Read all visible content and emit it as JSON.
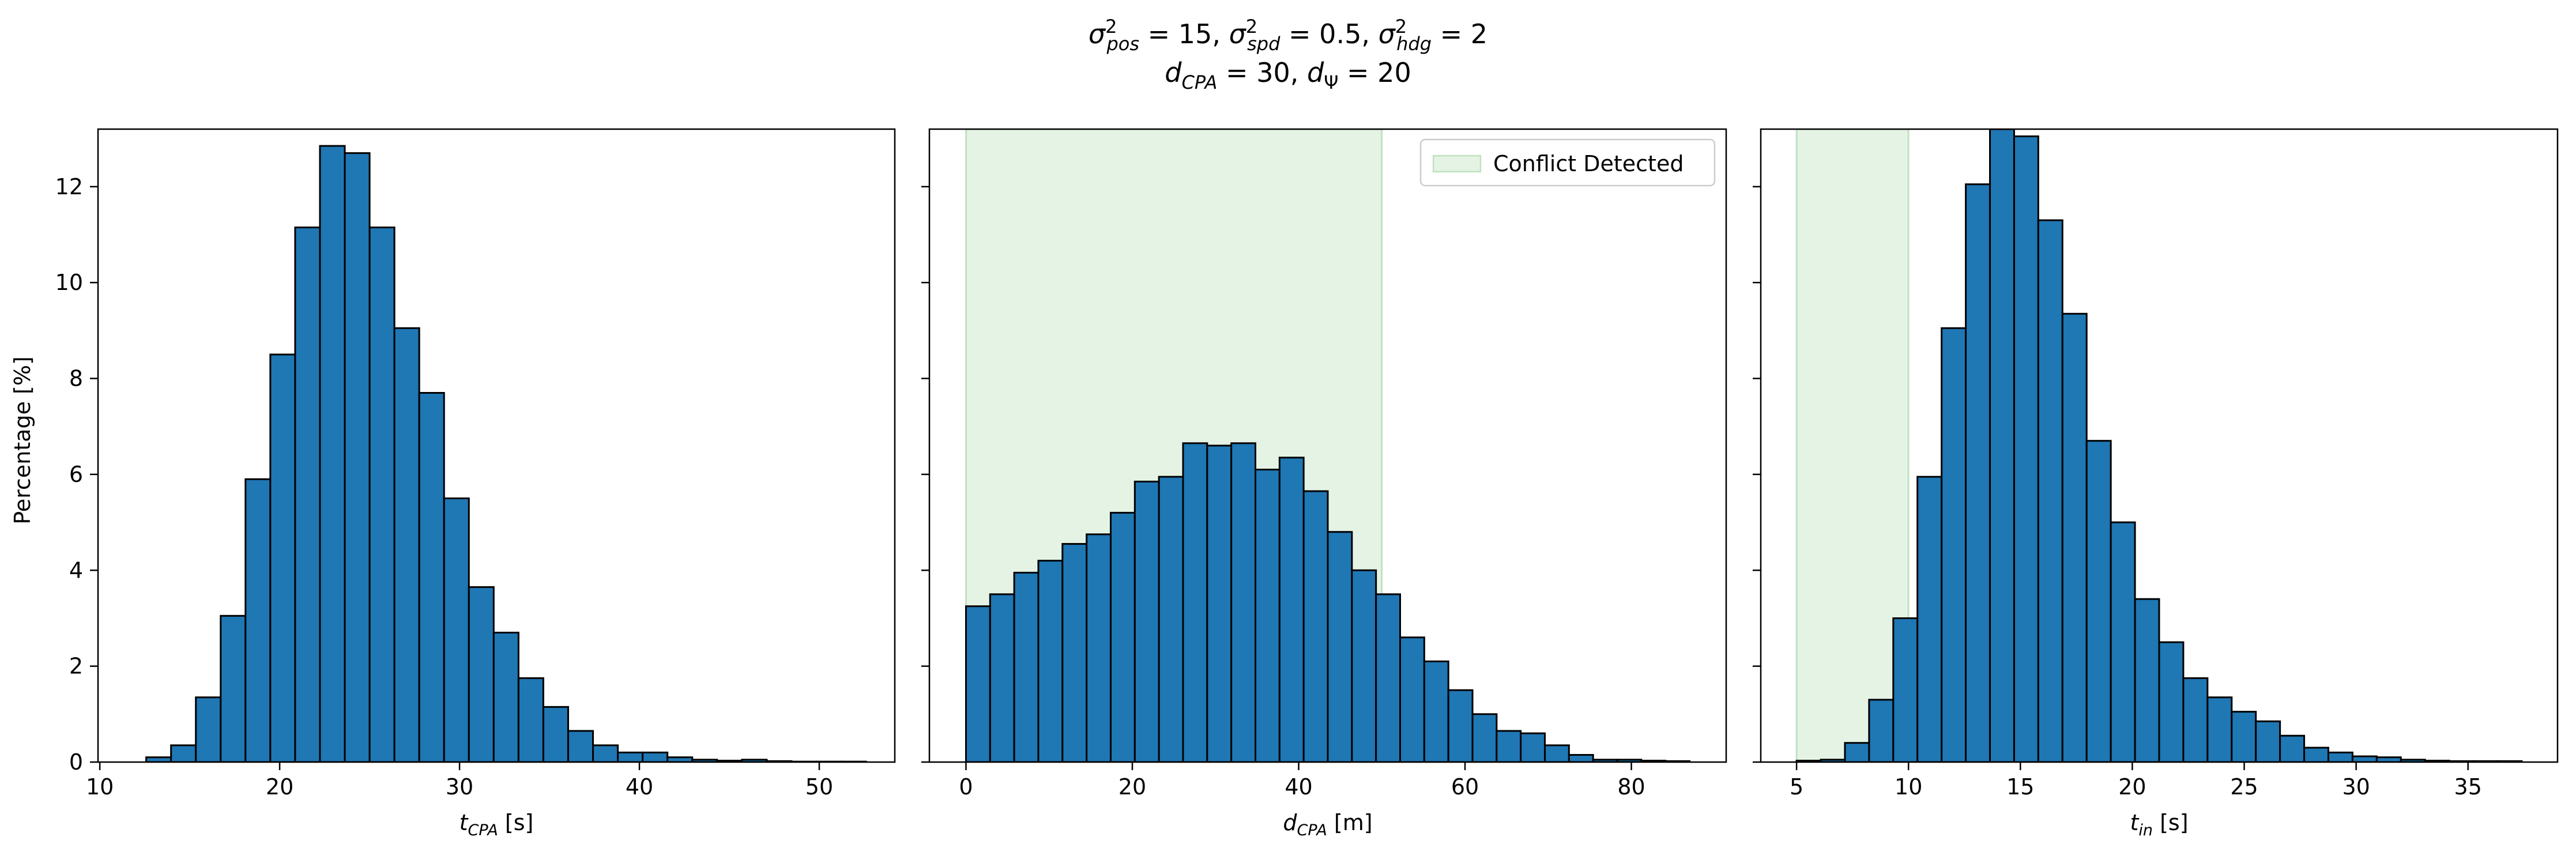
{
  "figure": {
    "title_line1": "σ²pos = 15, σ²spd = 0.5, σ²hdg = 2",
    "title_line2": "dCPA = 30, dΨ = 20"
  },
  "colors": {
    "bar_fill": "#1f77b4",
    "bar_edge": "#000000",
    "conflict_fill": "#2ca02c",
    "conflict_alpha": 0.12
  },
  "chart_data": [
    {
      "type": "bar",
      "subtype": "histogram",
      "ylabel": "Percentage [%]",
      "xlabel_main": "t",
      "xlabel_sub": "CPA",
      "xlabel_unit": "[s]",
      "xlim": [
        9.9,
        54.2
      ],
      "ylim": [
        0,
        13.2
      ],
      "xticks": [
        10,
        20,
        30,
        40,
        50
      ],
      "yticks": [
        0,
        2,
        4,
        6,
        8,
        10,
        12
      ],
      "show_ytick_labels": true,
      "bins_start": 11.2,
      "bin_width": 1.38,
      "values": [
        0.0,
        0.1,
        0.35,
        1.35,
        3.05,
        5.9,
        8.5,
        11.15,
        12.85,
        12.7,
        11.15,
        9.05,
        7.7,
        5.5,
        3.65,
        2.7,
        1.75,
        1.15,
        0.65,
        0.35,
        0.2,
        0.2,
        0.1,
        0.05,
        0.03,
        0.05,
        0.02,
        0.01,
        0.01,
        0.01
      ],
      "grid": false,
      "legend": null
    },
    {
      "type": "bar",
      "subtype": "histogram",
      "ylabel": "",
      "xlabel_main": "d",
      "xlabel_sub": "CPA",
      "xlabel_unit": "[m]",
      "xlim": [
        -4.4,
        91.4
      ],
      "ylim": [
        0,
        13.2
      ],
      "xticks": [
        0,
        20,
        40,
        60,
        80
      ],
      "yticks": [
        0,
        2,
        4,
        6,
        8,
        10,
        12
      ],
      "show_ytick_labels": false,
      "bins_start": 0,
      "bin_width": 2.9,
      "values": [
        3.25,
        3.5,
        3.95,
        4.2,
        4.55,
        4.75,
        5.2,
        5.85,
        5.95,
        6.65,
        6.6,
        6.65,
        6.1,
        6.35,
        5.65,
        4.8,
        4.0,
        3.5,
        2.6,
        2.1,
        1.5,
        1.0,
        0.65,
        0.6,
        0.35,
        0.15,
        0.05,
        0.05,
        0.03,
        0.02
      ],
      "conflict_region": [
        0,
        50
      ],
      "grid": false,
      "legend": {
        "label": "Conflict Detected",
        "placement": "upper right"
      }
    },
    {
      "type": "bar",
      "subtype": "histogram",
      "ylabel": "",
      "xlabel_main": "t",
      "xlabel_sub": "in",
      "xlabel_unit": "[s]",
      "xlim": [
        3.4,
        39.0
      ],
      "ylim": [
        0,
        13.2
      ],
      "xticks": [
        5,
        10,
        15,
        20,
        25,
        30,
        35
      ],
      "yticks": [
        0,
        2,
        4,
        6,
        8,
        10,
        12
      ],
      "show_ytick_labels": false,
      "bins_start": 5,
      "bin_width": 1.08,
      "values": [
        0.03,
        0.05,
        0.4,
        1.3,
        3.0,
        5.95,
        9.05,
        12.05,
        13.2,
        13.05,
        11.3,
        9.35,
        6.7,
        5.0,
        3.4,
        2.5,
        1.75,
        1.35,
        1.05,
        0.85,
        0.55,
        0.3,
        0.2,
        0.12,
        0.1,
        0.05,
        0.03,
        0.02,
        0.02,
        0.02
      ],
      "conflict_region": [
        5,
        10
      ],
      "grid": false,
      "legend": null
    }
  ]
}
